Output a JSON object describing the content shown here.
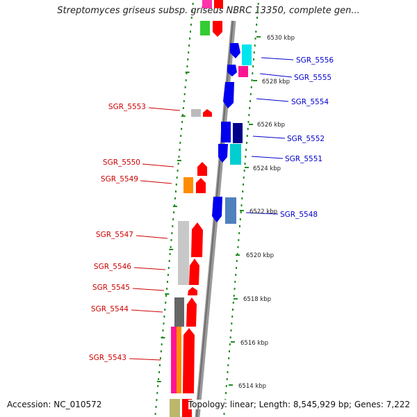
{
  "title": "Streptomyces griseus subsp. griseus NBRC 13350, complete gen...",
  "footer": {
    "accession": "Accession: NC_010572",
    "summary": "Topology: linear; Length: 8,545,929 bp; Genes: 7,222"
  },
  "colors": {
    "gene_plus": "#ff0000",
    "gene_minus": "#0000ff",
    "label_plus": "#cc0000",
    "label_minus": "#0000cc",
    "dots": "#228b22",
    "backbone": "#8a8a8a"
  },
  "scale_labels": [
    "6530 kbp",
    "6528 kbp",
    "6526 kbp",
    "6524 kbp",
    "6522 kbp",
    "6520 kbp",
    "6518 kbp",
    "6516 kbp",
    "6514 kbp"
  ],
  "genes_plus": [
    "SGR_5553",
    "SGR_5550",
    "SGR_5549",
    "SGR_5547",
    "SGR_5546",
    "SGR_5545",
    "SGR_5544",
    "SGR_5543"
  ],
  "genes_minus": [
    "SGR_5556",
    "SGR_5555",
    "SGR_5554",
    "SGR_5552",
    "SGR_5551",
    "SGR_5548"
  ]
}
